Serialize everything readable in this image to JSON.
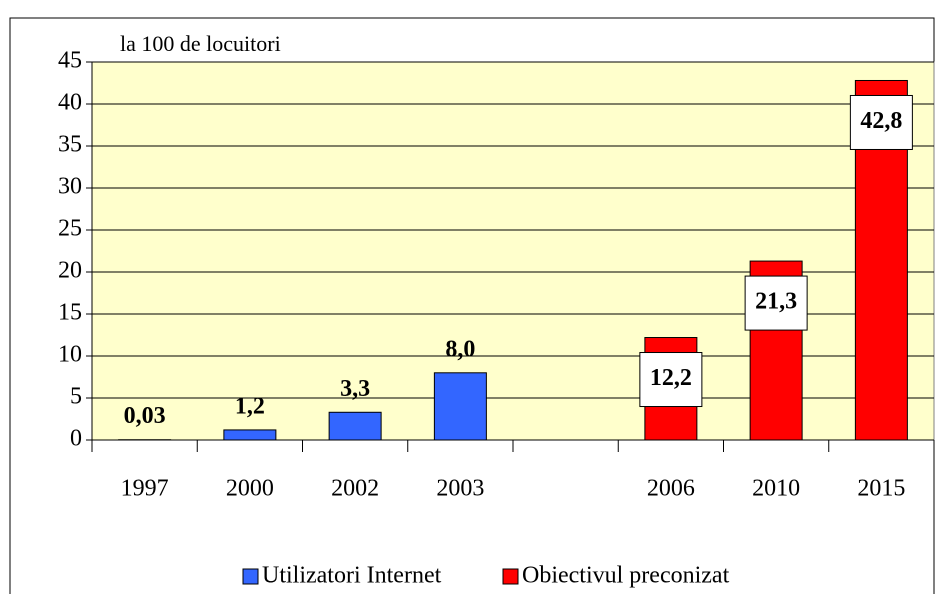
{
  "chart_data": {
    "type": "bar",
    "annotation": "la 100 de locuitori",
    "categories": [
      "1997",
      "2000",
      "2002",
      "2003",
      null,
      "2006",
      "2010",
      "2015"
    ],
    "series": [
      {
        "name": "Utilizatori Internet",
        "color": "#3366ff",
        "values": [
          0.03,
          1.2,
          3.3,
          8.0,
          null,
          null,
          null,
          null
        ],
        "value_labels": [
          "0,03",
          "1,2",
          "3,3",
          "8,0",
          null,
          null,
          null,
          null
        ]
      },
      {
        "name": "Obiectivul preconizat",
        "color": "#ff0000",
        "values": [
          null,
          null,
          null,
          null,
          null,
          12.2,
          21.3,
          42.8
        ],
        "value_labels": [
          null,
          null,
          null,
          null,
          null,
          "12,2",
          "21,3",
          "42,8"
        ]
      }
    ],
    "ylim": [
      0,
      45
    ],
    "yticks": [
      0,
      5,
      10,
      15,
      20,
      25,
      30,
      35,
      40,
      45
    ],
    "grid": true,
    "legend": "bottom",
    "plot_background": "#ffffcc"
  }
}
